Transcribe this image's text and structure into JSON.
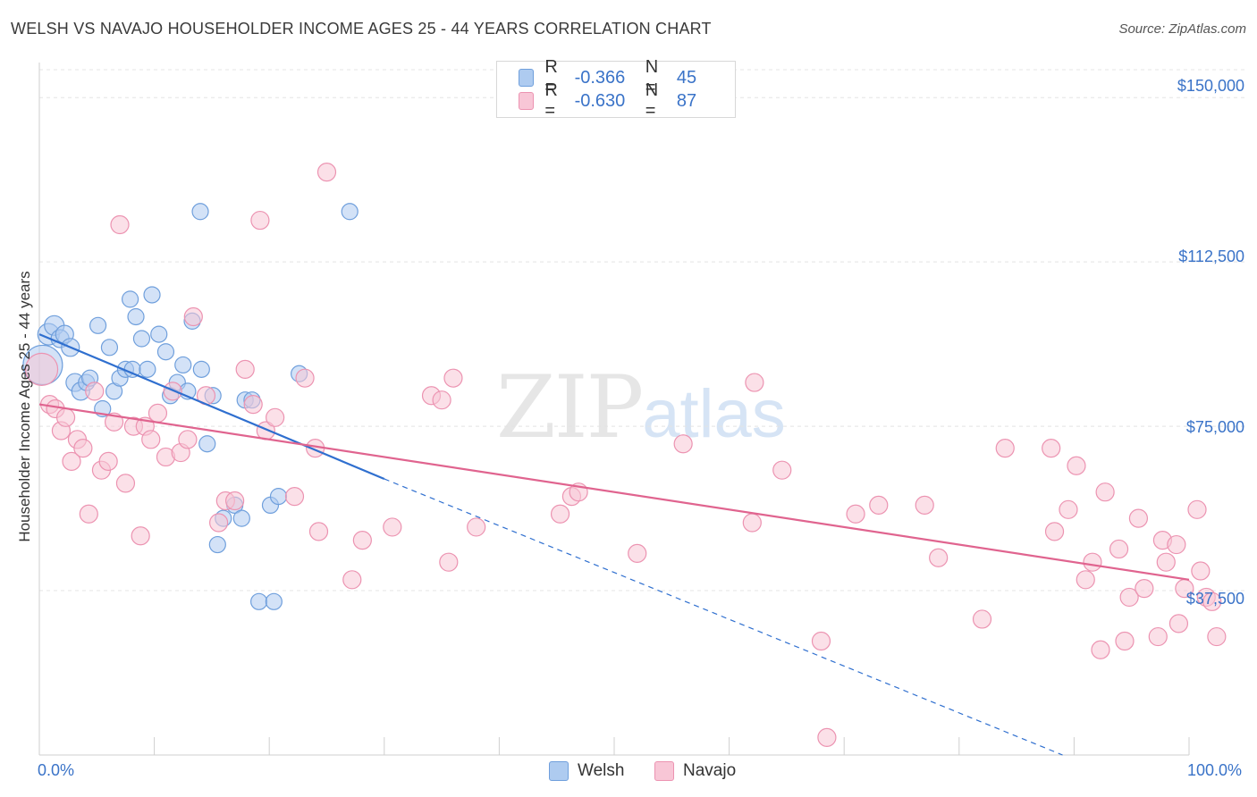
{
  "header": {
    "title": "WELSH VS NAVAJO HOUSEHOLDER INCOME AGES 25 - 44 YEARS CORRELATION CHART",
    "source": "Source: ZipAtlas.com"
  },
  "watermark": {
    "zip": "ZIP",
    "atlas": "atlas"
  },
  "legend": {
    "welsh": {
      "r_label": "R =",
      "r_value": "-0.366",
      "n_label": "N =",
      "n_value": "45"
    },
    "navajo": {
      "r_label": "R =",
      "r_value": "-0.630",
      "n_label": "N =",
      "n_value": "87"
    }
  },
  "bottom_legend": {
    "welsh": "Welsh",
    "navajo": "Navajo"
  },
  "colors": {
    "welsh_fill": "#aecbf0",
    "welsh_stroke": "#6f9fdc",
    "welsh_line": "#2f6fcf",
    "navajo_fill": "#f8c6d6",
    "navajo_stroke": "#ec93b1",
    "navajo_line": "#e0648f",
    "tick_label": "#3a73c8",
    "grid": "#e4e4e4"
  },
  "chart_data": {
    "type": "scatter",
    "title": "WELSH VS NAVAJO HOUSEHOLDER INCOME AGES 25 - 44 YEARS CORRELATION CHART",
    "xlabel": "",
    "ylabel": "Householder Income Ages 25 - 44 years",
    "xlim": [
      0,
      100
    ],
    "ylim": [
      0,
      158000
    ],
    "x_tick_labels": [
      "0.0%",
      "100.0%"
    ],
    "y_ticks": [
      37500,
      75000,
      112500,
      150000
    ],
    "y_tick_labels": [
      "$37,500",
      "$75,000",
      "$112,500",
      "$150,000"
    ],
    "grid": true,
    "legend_position": "top-center",
    "series": [
      {
        "name": "Welsh",
        "trend": {
          "x0": 0,
          "y0": 96000,
          "x1": 30,
          "y1": 63000,
          "dashed_to_x": 89,
          "dashed_to_y": 0
        },
        "points": [
          [
            0.3,
            89000,
            22
          ],
          [
            0.8,
            96000,
            12
          ],
          [
            1.3,
            98000,
            11
          ],
          [
            1.8,
            95000,
            10
          ],
          [
            2.2,
            96000,
            10
          ],
          [
            2.7,
            93000,
            10
          ],
          [
            3.1,
            85000,
            10
          ],
          [
            3.6,
            83000,
            10
          ],
          [
            4.1,
            85000,
            9
          ],
          [
            4.4,
            86000,
            9
          ],
          [
            5.1,
            98000,
            9
          ],
          [
            5.5,
            79000,
            9
          ],
          [
            6.1,
            93000,
            9
          ],
          [
            6.5,
            83000,
            9
          ],
          [
            7.0,
            86000,
            9
          ],
          [
            7.5,
            88000,
            9
          ],
          [
            8.1,
            88000,
            9
          ],
          [
            7.9,
            104000,
            9
          ],
          [
            8.4,
            100000,
            9
          ],
          [
            8.9,
            95000,
            9
          ],
          [
            9.4,
            88000,
            9
          ],
          [
            9.8,
            105000,
            9
          ],
          [
            10.4,
            96000,
            9
          ],
          [
            11.0,
            92000,
            9
          ],
          [
            11.4,
            82000,
            9
          ],
          [
            12.0,
            85000,
            9
          ],
          [
            12.5,
            89000,
            9
          ],
          [
            12.9,
            83000,
            9
          ],
          [
            13.3,
            99000,
            9
          ],
          [
            14.0,
            124000,
            9
          ],
          [
            14.1,
            88000,
            9
          ],
          [
            14.6,
            71000,
            9
          ],
          [
            15.1,
            82000,
            9
          ],
          [
            15.5,
            48000,
            9
          ],
          [
            16.0,
            54000,
            9
          ],
          [
            17.0,
            57000,
            9
          ],
          [
            17.6,
            54000,
            9
          ],
          [
            17.9,
            81000,
            9
          ],
          [
            18.5,
            81000,
            9
          ],
          [
            19.1,
            35000,
            9
          ],
          [
            20.1,
            57000,
            9
          ],
          [
            20.4,
            35000,
            9
          ],
          [
            20.8,
            59000,
            9
          ],
          [
            22.6,
            87000,
            9
          ],
          [
            27.0,
            124000,
            9
          ]
        ]
      },
      {
        "name": "Navajo",
        "trend": {
          "x0": 0,
          "y0": 80000,
          "x1": 100,
          "y1": 40000
        },
        "points": [
          [
            0.2,
            88000,
            18
          ],
          [
            0.9,
            80000,
            10
          ],
          [
            1.4,
            79000,
            10
          ],
          [
            1.9,
            74000,
            10
          ],
          [
            2.3,
            77000,
            10
          ],
          [
            2.8,
            67000,
            10
          ],
          [
            3.3,
            72000,
            10
          ],
          [
            3.8,
            70000,
            10
          ],
          [
            4.3,
            55000,
            10
          ],
          [
            4.8,
            83000,
            10
          ],
          [
            5.4,
            65000,
            10
          ],
          [
            6.0,
            67000,
            10
          ],
          [
            6.5,
            76000,
            10
          ],
          [
            7.0,
            121000,
            10
          ],
          [
            7.5,
            62000,
            10
          ],
          [
            8.2,
            75000,
            10
          ],
          [
            8.8,
            50000,
            10
          ],
          [
            9.2,
            75000,
            10
          ],
          [
            9.7,
            72000,
            10
          ],
          [
            10.3,
            78000,
            10
          ],
          [
            11.0,
            68000,
            10
          ],
          [
            11.6,
            83000,
            10
          ],
          [
            12.3,
            69000,
            10
          ],
          [
            12.9,
            72000,
            10
          ],
          [
            13.4,
            100000,
            10
          ],
          [
            14.5,
            82000,
            10
          ],
          [
            15.6,
            53000,
            10
          ],
          [
            16.2,
            58000,
            10
          ],
          [
            17.0,
            58000,
            10
          ],
          [
            17.9,
            88000,
            10
          ],
          [
            18.6,
            80000,
            10
          ],
          [
            19.2,
            122000,
            10
          ],
          [
            19.7,
            74000,
            10
          ],
          [
            20.5,
            77000,
            10
          ],
          [
            22.2,
            59000,
            10
          ],
          [
            23.1,
            86000,
            10
          ],
          [
            24.0,
            70000,
            10
          ],
          [
            24.3,
            51000,
            10
          ],
          [
            25.0,
            133000,
            10
          ],
          [
            27.2,
            40000,
            10
          ],
          [
            28.1,
            49000,
            10
          ],
          [
            30.7,
            52000,
            10
          ],
          [
            34.1,
            82000,
            10
          ],
          [
            35.0,
            81000,
            10
          ],
          [
            35.6,
            44000,
            10
          ],
          [
            36.0,
            86000,
            10
          ],
          [
            38.0,
            52000,
            10
          ],
          [
            45.3,
            55000,
            10
          ],
          [
            46.3,
            59000,
            10
          ],
          [
            46.9,
            60000,
            10
          ],
          [
            52.0,
            46000,
            10
          ],
          [
            56.0,
            71000,
            10
          ],
          [
            62.0,
            53000,
            10
          ],
          [
            62.2,
            85000,
            10
          ],
          [
            64.6,
            65000,
            10
          ],
          [
            68.0,
            26000,
            10
          ],
          [
            68.5,
            4000,
            10
          ],
          [
            71.0,
            55000,
            10
          ],
          [
            73.0,
            57000,
            10
          ],
          [
            77.0,
            57000,
            10
          ],
          [
            78.2,
            45000,
            10
          ],
          [
            82.0,
            31000,
            10
          ],
          [
            84.0,
            70000,
            10
          ],
          [
            88.0,
            70000,
            10
          ],
          [
            88.3,
            51000,
            10
          ],
          [
            89.5,
            56000,
            10
          ],
          [
            90.2,
            66000,
            10
          ],
          [
            91.0,
            40000,
            10
          ],
          [
            91.6,
            44000,
            10
          ],
          [
            92.3,
            24000,
            10
          ],
          [
            92.7,
            60000,
            10
          ],
          [
            93.9,
            47000,
            10
          ],
          [
            94.4,
            26000,
            10
          ],
          [
            94.8,
            36000,
            10
          ],
          [
            95.6,
            54000,
            10
          ],
          [
            96.1,
            38000,
            10
          ],
          [
            97.3,
            27000,
            10
          ],
          [
            97.7,
            49000,
            10
          ],
          [
            98.0,
            44000,
            10
          ],
          [
            98.9,
            48000,
            10
          ],
          [
            99.1,
            30000,
            10
          ],
          [
            99.6,
            38000,
            10
          ],
          [
            100.7,
            56000,
            10
          ],
          [
            101.0,
            42000,
            10
          ],
          [
            101.5,
            36000,
            10
          ],
          [
            102.0,
            35000,
            10
          ],
          [
            102.4,
            27000,
            10
          ]
        ]
      }
    ]
  }
}
